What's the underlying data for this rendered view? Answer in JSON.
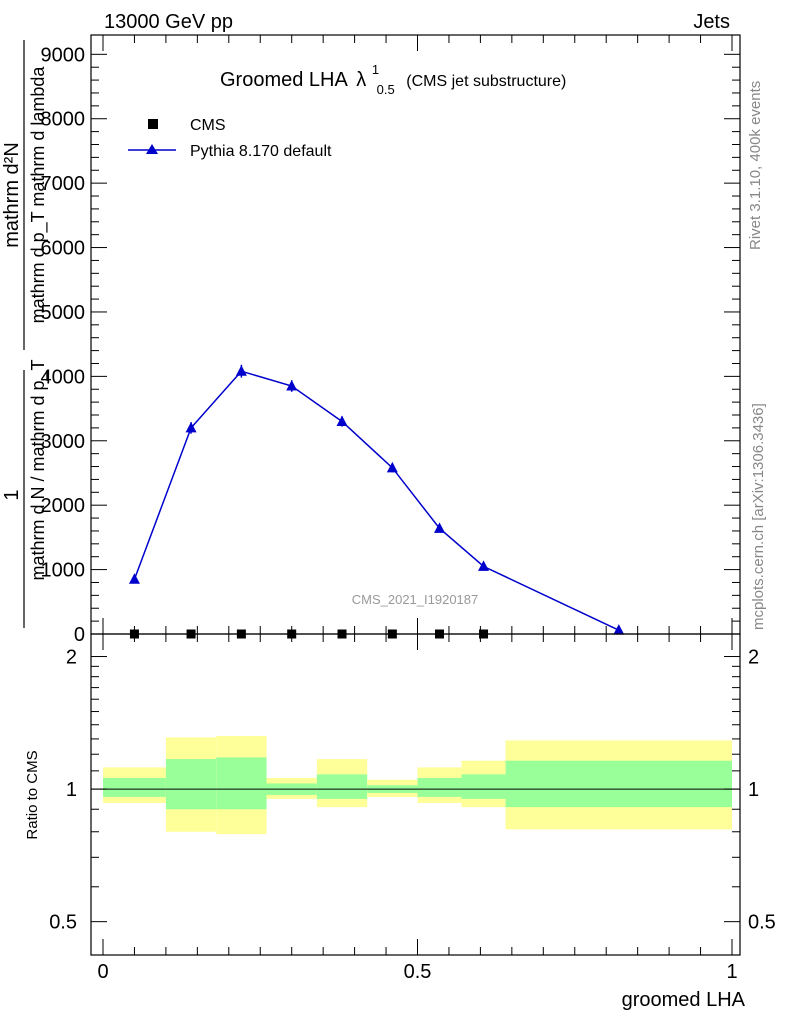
{
  "header": {
    "left_label": "13000 GeV pp",
    "right_label": "Jets"
  },
  "side_labels": {
    "top": "Rivet 3.1.10,  400k events",
    "bottom": "mcplots.cern.ch [arXiv:1306.3436]"
  },
  "watermark": "CMS_2021_I1920187",
  "colors": {
    "mc": "#0000cc",
    "band_outer": "#ffff99",
    "band_inner": "#99ff99",
    "data": "#000000"
  },
  "chart_data": [
    {
      "panel": "main",
      "type": "line",
      "title_main": "Groomed LHA",
      "title_lambda": "λ",
      "title_sup": "1",
      "title_sub": "0.5",
      "title_note": "(CMS jet substructure)",
      "ylabel_num": "mathrm d²N",
      "ylabel_den": "mathrm d p_T mathrm d lambda",
      "ylabel_prefix": "1",
      "ylabel_prefix_den": "mathrm d N / mathrm d p_T",
      "ylim": [
        0,
        9300
      ],
      "yticks": [
        0,
        1000,
        2000,
        3000,
        4000,
        5000,
        6000,
        7000,
        8000,
        9000
      ],
      "ytick_labels": [
        "0",
        "1000",
        "2000",
        "3000",
        "4000",
        "5000",
        "6000",
        "7000",
        "8000",
        "9000"
      ],
      "legend_position": "top-left",
      "series": [
        {
          "name": "CMS",
          "marker": "square",
          "x": [
            0.05,
            0.14,
            0.22,
            0.3,
            0.38,
            0.46,
            0.535,
            0.605
          ],
          "y": [
            0,
            0,
            0,
            0,
            0,
            0,
            0,
            0
          ]
        },
        {
          "name": "Pythia 8.170 default",
          "marker": "triangle",
          "x": [
            0.05,
            0.14,
            0.22,
            0.3,
            0.38,
            0.46,
            0.535,
            0.605,
            0.82
          ],
          "y": [
            850,
            3200,
            4080,
            3850,
            3300,
            2580,
            1640,
            1050,
            60
          ],
          "yerr": [
            40,
            90,
            100,
            90,
            80,
            70,
            60,
            40,
            20
          ]
        }
      ]
    },
    {
      "panel": "ratio",
      "type": "area",
      "ylabel": "Ratio to CMS",
      "xlabel": "groomed LHA",
      "xlim": [
        0,
        1
      ],
      "ylim": [
        0.42,
        2.25
      ],
      "xticks": [
        0,
        0.5,
        1
      ],
      "xtick_labels": [
        "0",
        "0.5",
        "1"
      ],
      "yticks": [
        0.5,
        1,
        2
      ],
      "ytick_labels": [
        "0.5",
        "1",
        "2"
      ],
      "reference": 1,
      "bins": [
        {
          "x0": 0.0,
          "x1": 0.1,
          "outer": [
            0.93,
            1.12
          ],
          "inner": [
            0.96,
            1.06
          ]
        },
        {
          "x0": 0.1,
          "x1": 0.18,
          "outer": [
            0.8,
            1.31
          ],
          "inner": [
            0.9,
            1.17
          ]
        },
        {
          "x0": 0.18,
          "x1": 0.26,
          "outer": [
            0.79,
            1.32
          ],
          "inner": [
            0.9,
            1.18
          ]
        },
        {
          "x0": 0.26,
          "x1": 0.34,
          "outer": [
            0.95,
            1.06
          ],
          "inner": [
            0.97,
            1.03
          ]
        },
        {
          "x0": 0.34,
          "x1": 0.42,
          "outer": [
            0.91,
            1.17
          ],
          "inner": [
            0.95,
            1.08
          ]
        },
        {
          "x0": 0.42,
          "x1": 0.5,
          "outer": [
            0.96,
            1.05
          ],
          "inner": [
            0.98,
            1.02
          ]
        },
        {
          "x0": 0.5,
          "x1": 0.57,
          "outer": [
            0.93,
            1.12
          ],
          "inner": [
            0.96,
            1.06
          ]
        },
        {
          "x0": 0.57,
          "x1": 0.64,
          "outer": [
            0.91,
            1.16
          ],
          "inner": [
            0.95,
            1.08
          ]
        },
        {
          "x0": 0.64,
          "x1": 1.0,
          "outer": [
            0.81,
            1.29
          ],
          "inner": [
            0.91,
            1.16
          ]
        }
      ]
    }
  ]
}
